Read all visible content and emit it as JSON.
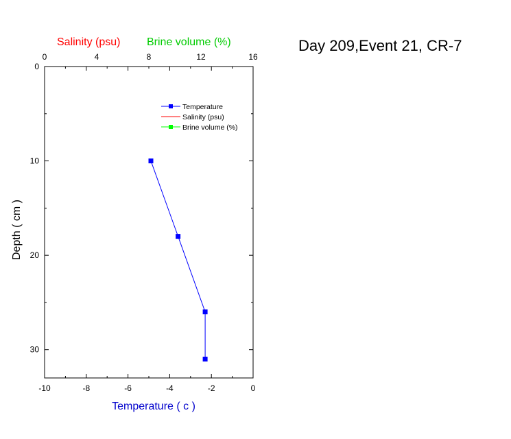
{
  "chart_data": {
    "type": "line",
    "title": "Day 209,Event 21, CR-7",
    "xlabel": "Temperature ( c )",
    "ylabel": "Depth ( cm )",
    "top_axis": {
      "range": [
        0,
        16
      ],
      "ticks": [
        "0",
        "4",
        "8",
        "12",
        "16"
      ],
      "label_salinity": "Salinity (psu)",
      "label_brine": "Brine volume (%)"
    },
    "xlim": [
      -10,
      0
    ],
    "ylim": [
      0,
      33
    ],
    "x_ticks": [
      "-10",
      "-8",
      "-6",
      "-4",
      "-2",
      "0"
    ],
    "y_ticks": [
      "0",
      "10",
      "20",
      "30"
    ],
    "series": [
      {
        "name": "Temperature",
        "color": "#0000ff",
        "marker": "square",
        "points": [
          {
            "temperature": -4.9,
            "depth": 10
          },
          {
            "temperature": -3.6,
            "depth": 18
          },
          {
            "temperature": -2.3,
            "depth": 26
          },
          {
            "temperature": -2.3,
            "depth": 31
          }
        ]
      },
      {
        "name": "Salinity (psu)",
        "color": "#ff0000",
        "marker": "none",
        "points": []
      },
      {
        "name": "Brine volume (%)",
        "color": "#00ff00",
        "marker": "square",
        "points": []
      }
    ],
    "legend_position": "top-right",
    "colors": {
      "temperature": "#0000ff",
      "salinity": "#ff0000",
      "brine": "#00ff00",
      "axis": "#000000"
    }
  }
}
